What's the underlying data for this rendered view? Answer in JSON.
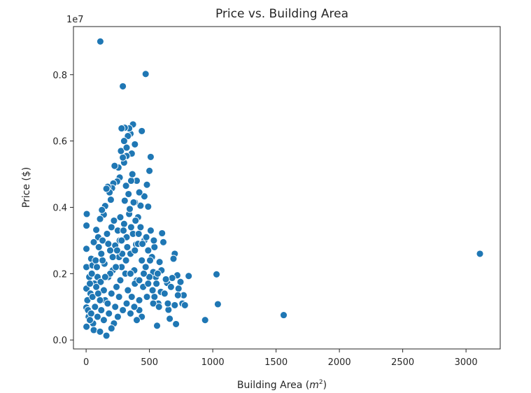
{
  "chart_data": {
    "type": "scatter",
    "title": "Price vs. Building Area",
    "xlabel_main": "Building Area (",
    "xlabel_var": "m",
    "xlabel_sup": "2",
    "xlabel_close": ")",
    "ylabel": "Price ($)",
    "y_offset_label": "1e7",
    "xlim": [
      -100,
      3270
    ],
    "ylim": [
      -270000,
      9450000
    ],
    "x_ticks": [
      0,
      500,
      1000,
      1500,
      2000,
      2500,
      3000
    ],
    "x_tick_labels": [
      "0",
      "500",
      "1000",
      "1500",
      "2000",
      "2500",
      "3000"
    ],
    "y_ticks": [
      0,
      2000000,
      4000000,
      6000000,
      8000000
    ],
    "y_tick_labels": [
      "0.0",
      "0.2",
      "0.4",
      "0.6",
      "0.8"
    ],
    "grid": false,
    "legend": "none",
    "series": [
      {
        "color": "#1f77b4",
        "points": [
          [
            112,
            9000000
          ],
          [
            470,
            8020000
          ],
          [
            290,
            7650000
          ],
          [
            3110,
            2600000
          ],
          [
            1560,
            750000
          ],
          [
            1040,
            1080000
          ],
          [
            1030,
            1980000
          ],
          [
            940,
            600000
          ],
          [
            810,
            1930000
          ],
          [
            770,
            1350000
          ],
          [
            760,
            1100000
          ],
          [
            720,
            1950000
          ],
          [
            730,
            1550000
          ],
          [
            710,
            480000
          ],
          [
            700,
            2600000
          ],
          [
            690,
            2450000
          ],
          [
            680,
            1870000
          ],
          [
            660,
            640000
          ],
          [
            650,
            910000
          ],
          [
            640,
            1720000
          ],
          [
            630,
            1830000
          ],
          [
            610,
            2950000
          ],
          [
            600,
            3220000
          ],
          [
            560,
            430000
          ],
          [
            550,
            1900000
          ],
          [
            580,
            2350000
          ],
          [
            590,
            1450000
          ],
          [
            570,
            1100000
          ],
          [
            540,
            1300000
          ],
          [
            530,
            2050000
          ],
          [
            510,
            5520000
          ],
          [
            500,
            5100000
          ],
          [
            490,
            4020000
          ],
          [
            480,
            4680000
          ],
          [
            460,
            4330000
          ],
          [
            440,
            6300000
          ],
          [
            430,
            4050000
          ],
          [
            420,
            4450000
          ],
          [
            410,
            3700000
          ],
          [
            400,
            4800000
          ],
          [
            395,
            2880000
          ],
          [
            385,
            4150000
          ],
          [
            370,
            6500000
          ],
          [
            360,
            5620000
          ],
          [
            350,
            6220000
          ],
          [
            340,
            6380000
          ],
          [
            330,
            6150000
          ],
          [
            320,
            5550000
          ],
          [
            305,
            6400000
          ],
          [
            300,
            5350000
          ],
          [
            290,
            5500000
          ],
          [
            280,
            6380000
          ],
          [
            275,
            5700000
          ],
          [
            265,
            4900000
          ],
          [
            255,
            5200000
          ],
          [
            245,
            4780000
          ],
          [
            225,
            5250000
          ],
          [
            215,
            4720000
          ],
          [
            205,
            4580000
          ],
          [
            195,
            4230000
          ],
          [
            185,
            4450000
          ],
          [
            170,
            4620000
          ],
          [
            160,
            4560000
          ],
          [
            150,
            4040000
          ],
          [
            140,
            3780000
          ],
          [
            125,
            3920000
          ],
          [
            110,
            3650000
          ],
          [
            95,
            3100000
          ],
          [
            80,
            3320000
          ],
          [
            60,
            2950000
          ],
          [
            40,
            2450000
          ],
          [
            25,
            1900000
          ],
          [
            10,
            1200000
          ],
          [
            5,
            3800000
          ],
          [
            3,
            3450000
          ],
          [
            2,
            2750000
          ],
          [
            2,
            2200000
          ],
          [
            2,
            1550000
          ],
          [
            2,
            980000
          ],
          [
            3,
            400000
          ],
          [
            20,
            700000
          ],
          [
            35,
            1400000
          ],
          [
            50,
            2250000
          ],
          [
            65,
            1700000
          ],
          [
            75,
            2400000
          ],
          [
            90,
            1900000
          ],
          [
            100,
            2800000
          ],
          [
            115,
            1750000
          ],
          [
            130,
            3000000
          ],
          [
            145,
            2300000
          ],
          [
            150,
            1200000
          ],
          [
            165,
            3200000
          ],
          [
            175,
            1900000
          ],
          [
            190,
            2700000
          ],
          [
            200,
            3400000
          ],
          [
            210,
            2100000
          ],
          [
            220,
            3600000
          ],
          [
            230,
            2850000
          ],
          [
            240,
            1600000
          ],
          [
            250,
            3300000
          ],
          [
            260,
            2500000
          ],
          [
            270,
            3700000
          ],
          [
            280,
            2200000
          ],
          [
            300,
            3500000
          ],
          [
            310,
            2000000
          ],
          [
            320,
            3100000
          ],
          [
            330,
            1500000
          ],
          [
            340,
            3800000
          ],
          [
            350,
            2600000
          ],
          [
            360,
            1300000
          ],
          [
            370,
            3200000
          ],
          [
            380,
            2100000
          ],
          [
            390,
            3600000
          ],
          [
            400,
            1800000
          ],
          [
            410,
            2900000
          ],
          [
            420,
            1200000
          ],
          [
            430,
            3400000
          ],
          [
            440,
            2400000
          ],
          [
            450,
            1600000
          ],
          [
            460,
            3000000
          ],
          [
            470,
            2200000
          ],
          [
            480,
            1300000
          ],
          [
            490,
            2700000
          ],
          [
            500,
            1900000
          ],
          [
            510,
            3300000
          ],
          [
            520,
            2500000
          ],
          [
            530,
            1100000
          ],
          [
            540,
            2800000
          ],
          [
            555,
            1700000
          ],
          [
            575,
            1000000
          ],
          [
            595,
            2100000
          ],
          [
            620,
            1400000
          ],
          [
            645,
            1100000
          ],
          [
            670,
            1600000
          ],
          [
            700,
            1050000
          ],
          [
            725,
            1350000
          ],
          [
            745,
            1750000
          ],
          [
            780,
            1050000
          ],
          [
            440,
            700000
          ],
          [
            420,
            900000
          ],
          [
            400,
            600000
          ],
          [
            380,
            1000000
          ],
          [
            350,
            800000
          ],
          [
            320,
            1100000
          ],
          [
            290,
            900000
          ],
          [
            260,
            1300000
          ],
          [
            230,
            1000000
          ],
          [
            200,
            1400000
          ],
          [
            170,
            1100000
          ],
          [
            140,
            1500000
          ],
          [
            110,
            1200000
          ],
          [
            80,
            1600000
          ],
          [
            50,
            1300000
          ],
          [
            30,
            1700000
          ],
          [
            15,
            900000
          ],
          [
            220,
            500000
          ],
          [
            180,
            800000
          ],
          [
            140,
            600000
          ],
          [
            120,
            900000
          ],
          [
            90,
            700000
          ],
          [
            70,
            1000000
          ],
          [
            55,
            500000
          ],
          [
            40,
            800000
          ],
          [
            30,
            600000
          ],
          [
            60,
            300000
          ],
          [
            110,
            250000
          ],
          [
            160,
            130000
          ],
          [
            200,
            350000
          ],
          [
            250,
            700000
          ],
          [
            270,
            1800000
          ],
          [
            285,
            2600000
          ],
          [
            305,
            4200000
          ],
          [
            315,
            4650000
          ],
          [
            335,
            4400000
          ],
          [
            345,
            3950000
          ],
          [
            355,
            4800000
          ],
          [
            365,
            5000000
          ],
          [
            375,
            4150000
          ],
          [
            385,
            5900000
          ],
          [
            300,
            6000000
          ],
          [
            320,
            5800000
          ],
          [
            130,
            2400000
          ],
          [
            190,
            2000000
          ],
          [
            235,
            2200000
          ],
          [
            265,
            3000000
          ],
          [
            295,
            3300000
          ],
          [
            325,
            2800000
          ],
          [
            355,
            3400000
          ],
          [
            385,
            2700000
          ],
          [
            415,
            3200000
          ],
          [
            445,
            2900000
          ],
          [
            475,
            3100000
          ],
          [
            505,
            2400000
          ],
          [
            535,
            3000000
          ],
          [
            565,
            2000000
          ],
          [
            85,
            2200000
          ],
          [
            45,
            2000000
          ],
          [
            150,
            1900000
          ],
          [
            95,
            1400000
          ],
          [
            120,
            2600000
          ],
          [
            175,
            2900000
          ],
          [
            210,
            2500000
          ],
          [
            245,
            2700000
          ],
          [
            280,
            3000000
          ],
          [
            315,
            2400000
          ],
          [
            350,
            2000000
          ],
          [
            385,
            1700000
          ],
          [
            420,
            1800000
          ],
          [
            455,
            2000000
          ],
          [
            490,
            1700000
          ],
          [
            525,
            1500000
          ]
        ]
      }
    ]
  }
}
